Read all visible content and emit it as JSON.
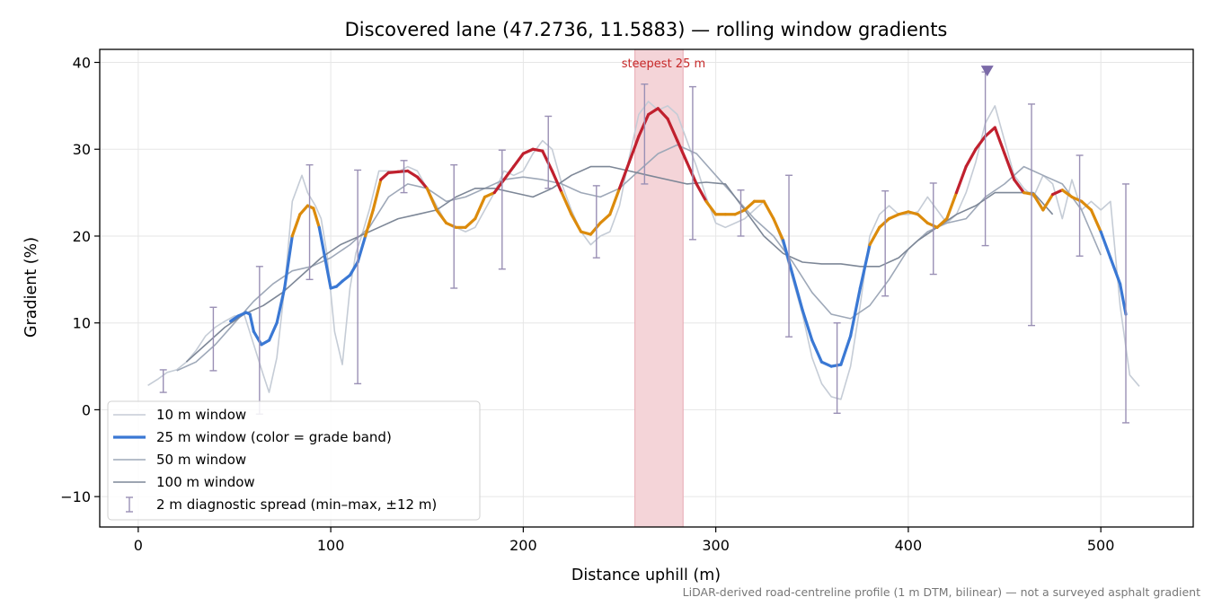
{
  "chart_data": {
    "type": "line",
    "title": "Discovered lane (47.2736, 11.5883) — rolling window gradients",
    "xlabel": "Distance uphill (m)",
    "ylabel": "Gradient (%)",
    "xlim": [
      -20,
      548
    ],
    "ylim": [
      -13.5,
      41.5
    ],
    "x_ticks": [
      0,
      100,
      200,
      300,
      400,
      500
    ],
    "y_ticks": [
      -10,
      0,
      10,
      20,
      30,
      40
    ],
    "grid": true,
    "legend_position": "lower-left",
    "footnote": "LiDAR-derived road-centreline profile (1 m DTM, bilinear) — not a surveyed asphalt gradient",
    "highlight": {
      "x_start": 258,
      "x_end": 283,
      "label": "steepest 25 m",
      "color": "#f4d4d8"
    },
    "peak_marker": {
      "x": 441,
      "y": 39,
      "color": "#7b6aa8"
    },
    "band_colors": {
      "low": "#3a78d4",
      "mid": "#dc8b0c",
      "high": "#c0202e"
    },
    "band_thresholds": [
      20,
      25
    ],
    "series": [
      {
        "name": "10 m window",
        "color": "#c5ccd6",
        "x": [
          5,
          10,
          15,
          20,
          25,
          30,
          35,
          40,
          45,
          50,
          55,
          60,
          65,
          68,
          72,
          76,
          80,
          85,
          88,
          92,
          95,
          98,
          102,
          106,
          110,
          113,
          116,
          120,
          125,
          130,
          135,
          140,
          145,
          150,
          155,
          160,
          165,
          170,
          175,
          180,
          185,
          190,
          195,
          200,
          205,
          210,
          215,
          220,
          225,
          230,
          235,
          240,
          245,
          250,
          255,
          260,
          265,
          270,
          275,
          280,
          285,
          290,
          295,
          300,
          305,
          310,
          315,
          320,
          325,
          330,
          335,
          340,
          345,
          350,
          355,
          360,
          365,
          370,
          375,
          380,
          385,
          390,
          395,
          400,
          405,
          410,
          415,
          420,
          425,
          430,
          435,
          440,
          445,
          450,
          455,
          460,
          465,
          470,
          475,
          480,
          485,
          490,
          495,
          500,
          505,
          510,
          515,
          520
        ],
        "values": [
          2.8,
          3.5,
          4.3,
          4.6,
          5.5,
          6.8,
          8.5,
          9.5,
          10.2,
          10.8,
          11.0,
          7.5,
          4.0,
          2.0,
          6.0,
          14.0,
          24.0,
          27.0,
          25.0,
          23.5,
          22.0,
          18.0,
          9.0,
          5.2,
          14.0,
          18.0,
          20.0,
          23.0,
          27.5,
          27.5,
          27.4,
          28.0,
          27.5,
          25.5,
          23.5,
          21.5,
          21.0,
          20.5,
          21.0,
          23.0,
          25.0,
          27.5,
          27.0,
          27.5,
          29.5,
          31.0,
          30.0,
          26.0,
          23.0,
          20.5,
          19.0,
          20.0,
          20.5,
          23.5,
          29.0,
          34.0,
          35.5,
          34.5,
          35.0,
          34.0,
          31.0,
          28.0,
          24.5,
          21.5,
          21.0,
          21.5,
          22.0,
          23.0,
          24.0,
          22.0,
          19.0,
          15.0,
          11.0,
          6.0,
          3.0,
          1.5,
          1.2,
          5.0,
          12.0,
          20.0,
          22.5,
          23.5,
          22.5,
          22.5,
          22.8,
          24.5,
          23.0,
          21.5,
          22.5,
          25.0,
          28.5,
          33.0,
          35.0,
          31.0,
          27.0,
          25.5,
          24.5,
          27.0,
          26.0,
          22.0,
          26.5,
          23.0,
          24.0,
          23.0,
          24.0,
          12.0,
          4.0,
          2.7
        ]
      },
      {
        "name": "25 m window (color = grade band)",
        "color": "#3a78d4",
        "x": [
          48,
          52,
          56,
          58,
          60,
          64,
          68,
          72,
          76,
          80,
          84,
          88,
          91,
          94,
          97,
          100,
          103,
          106,
          110,
          114,
          118,
          122,
          126,
          130,
          135,
          140,
          145,
          150,
          155,
          160,
          165,
          170,
          175,
          180,
          185,
          190,
          195,
          200,
          205,
          210,
          215,
          220,
          225,
          230,
          235,
          240,
          245,
          250,
          255,
          260,
          265,
          270,
          275,
          280,
          285,
          290,
          295,
          300,
          305,
          310,
          315,
          320,
          325,
          330,
          335,
          340,
          345,
          350,
          355,
          360,
          365,
          370,
          375,
          380,
          385,
          390,
          395,
          400,
          405,
          410,
          415,
          420,
          425,
          430,
          435,
          440,
          445,
          450,
          455,
          460,
          465,
          470,
          475,
          480,
          485,
          490,
          495,
          500,
          505,
          510,
          513
        ],
        "values": [
          10.2,
          10.8,
          11.2,
          11.0,
          9.0,
          7.5,
          8.0,
          10.0,
          14.0,
          20.0,
          22.5,
          23.5,
          23.2,
          21.0,
          17.5,
          14.0,
          14.2,
          14.8,
          15.5,
          17.0,
          20.0,
          23.0,
          26.5,
          27.3,
          27.4,
          27.5,
          26.8,
          25.5,
          23.0,
          21.5,
          21.0,
          21.0,
          22.0,
          24.5,
          25.0,
          26.5,
          28.0,
          29.5,
          30.0,
          29.8,
          27.5,
          25.0,
          22.5,
          20.5,
          20.2,
          21.5,
          22.5,
          25.5,
          28.5,
          31.5,
          34.0,
          34.7,
          33.5,
          31.0,
          28.5,
          26.0,
          24.0,
          22.5,
          22.5,
          22.5,
          23.0,
          24.0,
          24.0,
          22.0,
          19.5,
          15.5,
          11.5,
          8.0,
          5.5,
          5.0,
          5.2,
          8.5,
          14.0,
          19.0,
          21.0,
          22.0,
          22.5,
          22.8,
          22.5,
          21.5,
          21.0,
          22.0,
          25.0,
          28.0,
          30.0,
          31.5,
          32.5,
          29.5,
          26.5,
          25.0,
          24.8,
          23.0,
          24.8,
          25.3,
          24.5,
          24.0,
          23.0,
          20.5,
          17.5,
          14.5,
          11.0
        ]
      },
      {
        "name": "50 m window",
        "color": "#9ea8b8",
        "x": [
          20,
          30,
          40,
          50,
          60,
          70,
          80,
          90,
          100,
          110,
          120,
          130,
          140,
          150,
          160,
          170,
          180,
          190,
          200,
          210,
          220,
          230,
          240,
          250,
          260,
          270,
          280,
          290,
          300,
          310,
          320,
          330,
          340,
          350,
          360,
          370,
          380,
          390,
          400,
          410,
          420,
          430,
          440,
          450,
          460,
          470,
          480,
          490,
          500
        ],
        "values": [
          4.5,
          5.5,
          7.5,
          10.0,
          12.5,
          14.5,
          16.0,
          16.5,
          17.5,
          19.0,
          21.0,
          24.5,
          26.0,
          25.5,
          24.0,
          24.5,
          25.5,
          26.5,
          26.8,
          26.5,
          26.0,
          25.0,
          24.5,
          25.5,
          27.5,
          29.5,
          30.5,
          29.5,
          27.0,
          24.5,
          22.0,
          20.0,
          17.0,
          13.5,
          11.0,
          10.5,
          12.0,
          15.0,
          18.5,
          20.5,
          21.5,
          22.0,
          24.5,
          26.0,
          28.0,
          27.0,
          26.0,
          23.0,
          17.8
        ]
      },
      {
        "name": "100 m window",
        "color": "#7d8797",
        "x": [
          25,
          35,
          45,
          55,
          65,
          75,
          85,
          95,
          105,
          115,
          125,
          135,
          145,
          155,
          165,
          175,
          185,
          195,
          205,
          215,
          225,
          235,
          245,
          255,
          265,
          275,
          285,
          295,
          305,
          315,
          325,
          335,
          345,
          355,
          365,
          375,
          385,
          395,
          405,
          415,
          425,
          435,
          445,
          455,
          465,
          475
        ],
        "values": [
          5.5,
          7.5,
          9.5,
          11.0,
          12.0,
          13.5,
          15.5,
          17.5,
          19.0,
          20.0,
          21.0,
          22.0,
          22.5,
          23.0,
          24.5,
          25.5,
          25.5,
          25.0,
          24.5,
          25.5,
          27.0,
          28.0,
          28.0,
          27.5,
          27.0,
          26.5,
          26.0,
          26.2,
          26.0,
          23.0,
          20.0,
          18.0,
          17.0,
          16.8,
          16.8,
          16.5,
          16.5,
          17.5,
          19.5,
          21.0,
          22.5,
          23.5,
          25.0,
          25.0,
          25.0,
          22.5
        ]
      }
    ],
    "diagnostic_spread": {
      "name": "2 m diagnostic spread (min–max, ±12 m)",
      "color": "#9a90b5",
      "x": [
        13,
        39,
        63,
        89,
        114,
        138,
        164,
        189,
        213,
        238,
        263,
        288,
        313,
        338,
        363,
        388,
        413,
        440,
        464,
        489,
        513
      ],
      "min": [
        2.0,
        4.5,
        -0.5,
        15.0,
        3.0,
        25.0,
        14.0,
        16.2,
        25.5,
        17.5,
        26.0,
        19.6,
        20.0,
        8.4,
        -0.4,
        13.1,
        15.6,
        18.9,
        9.7,
        17.7,
        -1.5
      ],
      "max": [
        4.6,
        11.8,
        16.5,
        28.2,
        27.6,
        28.7,
        28.2,
        29.9,
        33.8,
        25.8,
        37.5,
        37.2,
        25.3,
        27.0,
        10.0,
        25.2,
        26.1,
        38.9,
        35.2,
        29.3,
        26.0
      ]
    }
  }
}
